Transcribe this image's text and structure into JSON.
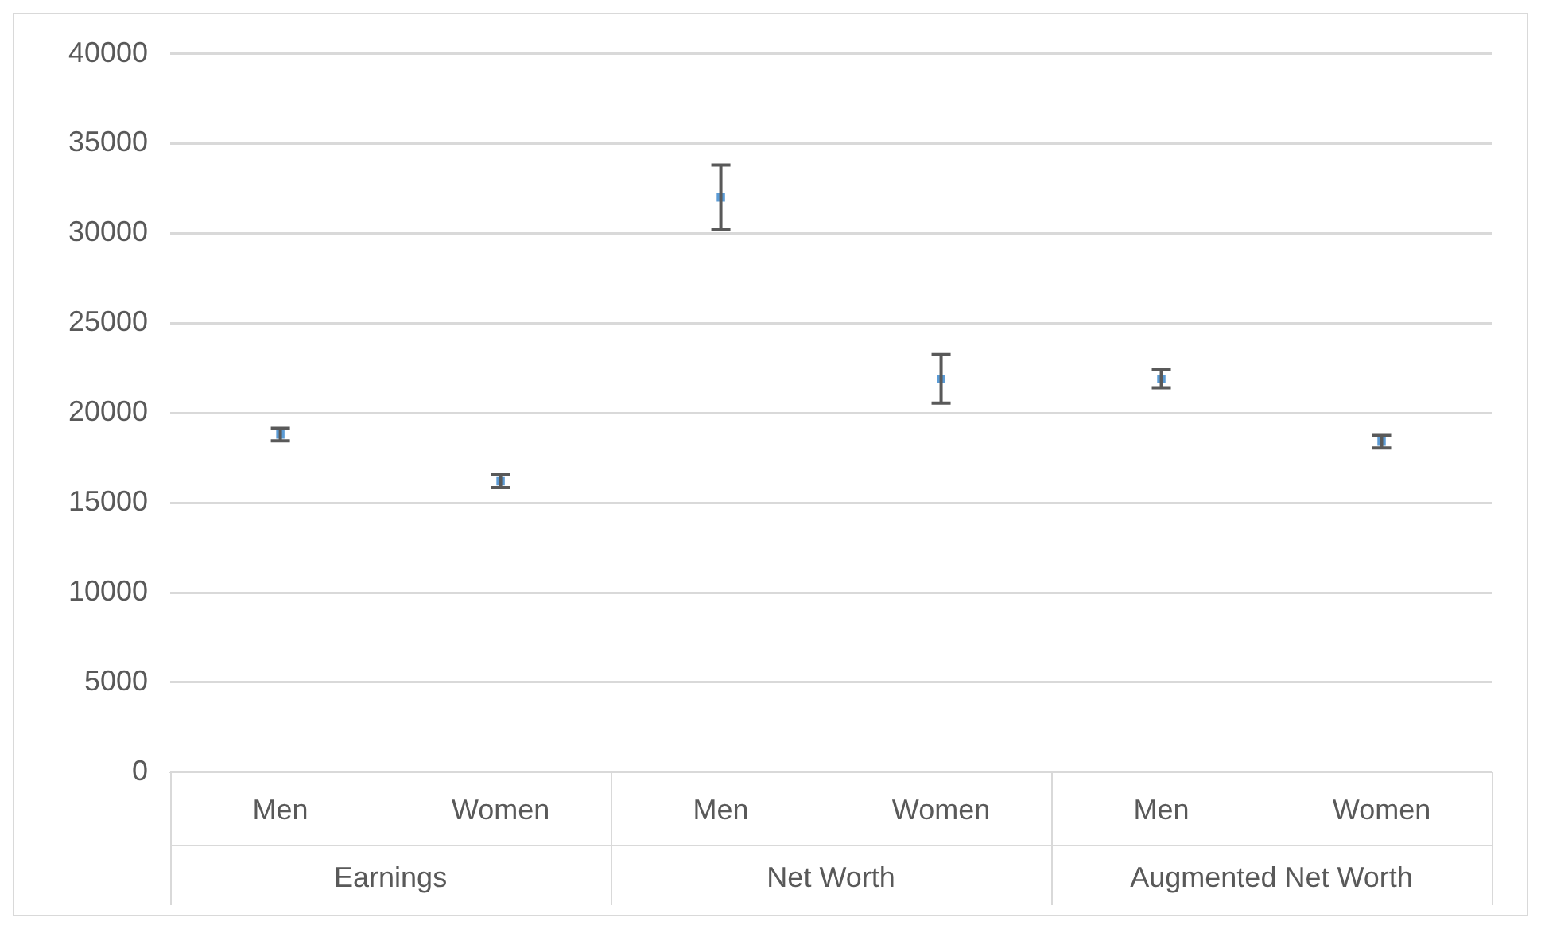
{
  "chart_data": {
    "type": "scatter",
    "categories": [
      "Men",
      "Women",
      "Men",
      "Women",
      "Men",
      "Women"
    ],
    "series": [
      {
        "color": "#5b9bd5",
        "values": [
          18800,
          16200,
          32000,
          21900,
          21900,
          18400
        ],
        "errors": [
          350,
          350,
          1800,
          1350,
          500,
          350
        ]
      }
    ],
    "ylim": [
      0,
      40000
    ],
    "yticks": [
      0,
      5000,
      10000,
      15000,
      20000,
      25000,
      30000,
      35000,
      40000
    ],
    "grid": "y",
    "legend": false,
    "marker": "square",
    "annotations": [
      "Earnings",
      "Net Worth",
      "Augmented Net Worth"
    ]
  }
}
